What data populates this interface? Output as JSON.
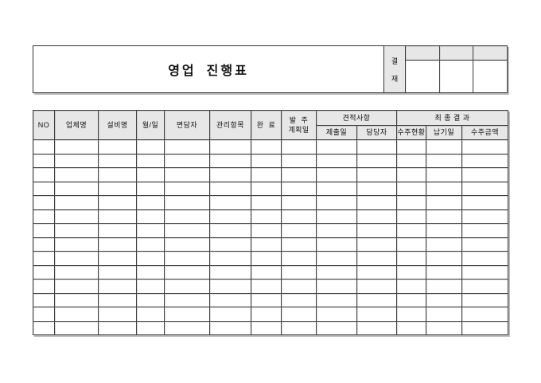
{
  "title": "영업 진행표",
  "approval": {
    "label_top": "결",
    "label_bottom": "재",
    "sign_columns": 3
  },
  "table": {
    "columns": {
      "no": "NO",
      "company": "업체명",
      "equipment": "설비명",
      "month_day": "월/일",
      "interviewer": "면담자",
      "mgmt_item": "관리항목",
      "complete": "완  료",
      "order_plan_line1": "발  주",
      "order_plan_line2": "계획일",
      "submit_date": "제출일",
      "manager": "담당자",
      "order_status": "수주현황",
      "delivery_date": "납기일",
      "order_amount": "수주금액"
    },
    "groups": {
      "quote": "견적사항",
      "final": "최 종 결 과"
    },
    "column_order": [
      "no",
      "company",
      "equipment",
      "month_day",
      "interviewer",
      "mgmt_item",
      "complete",
      "order_plan",
      "submit_date",
      "manager",
      "order_status",
      "delivery_date",
      "order_amount"
    ],
    "body_rows": 14
  },
  "colors": {
    "header_bg": "#e7e7e7",
    "border": "#414141",
    "page_bg": "#ffffff",
    "shadow": "#b9b9b9"
  }
}
